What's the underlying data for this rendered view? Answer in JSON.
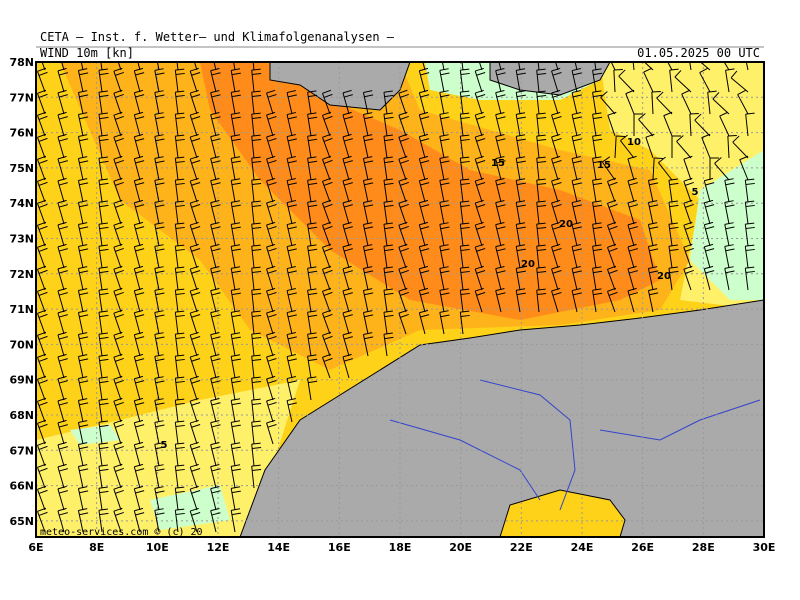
{
  "header": {
    "title": "CETA – Inst. f. Wetter– und Klimafolgenanalysen –",
    "field": "WIND 10m [kn]",
    "valid": "01.05.2025 00 UTC"
  },
  "axes": {
    "lat_labels": [
      "78N",
      "77N",
      "76N",
      "75N",
      "74N",
      "73N",
      "72N",
      "71N",
      "70N",
      "69N",
      "68N",
      "67N",
      "66N",
      "65N"
    ],
    "lon_labels": [
      "6E",
      "8E",
      "10E",
      "12E",
      "14E",
      "16E",
      "18E",
      "20E",
      "22E",
      "24E",
      "26E",
      "28E",
      "30E"
    ]
  },
  "contour_labels": [
    "15",
    "15",
    "10",
    "5",
    "20",
    "20",
    "20",
    "5"
  ],
  "watermark": "meteo-services.com © (c) 20"
}
